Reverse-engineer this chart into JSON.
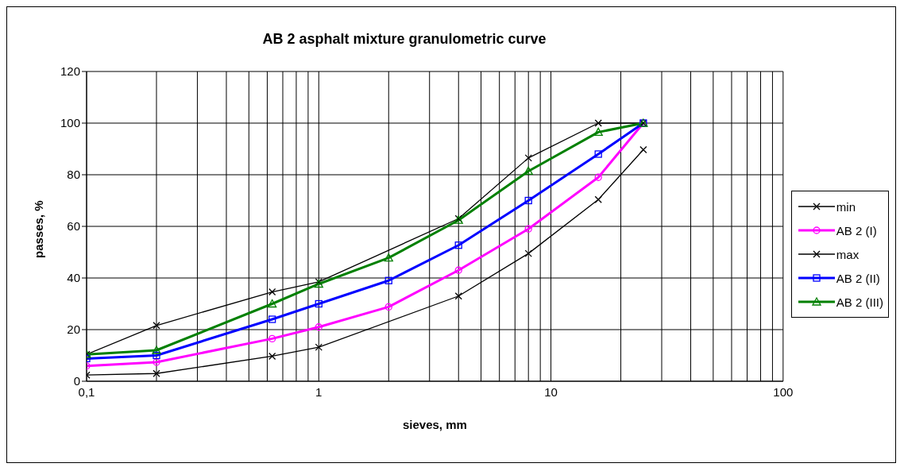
{
  "chart_data": {
    "type": "line",
    "title": "AB 2 asphalt mixture granulometric curve",
    "xlabel": "sieves, mm",
    "ylabel": "passes, %",
    "log": "x",
    "grid": true,
    "legend": "right",
    "line_style": "solid",
    "xlim": [
      0.1,
      100
    ],
    "ylim": [
      0,
      120
    ],
    "yticks": [
      0,
      20,
      40,
      60,
      80,
      100,
      120
    ],
    "xticks": [
      {
        "value": 0.1,
        "label": "0,1"
      },
      {
        "value": 0.2,
        "label": null
      },
      {
        "value": 0.3,
        "label": null
      },
      {
        "value": 0.4,
        "label": null
      },
      {
        "value": 0.5,
        "label": null
      },
      {
        "value": 0.6,
        "label": null
      },
      {
        "value": 0.7,
        "label": null
      },
      {
        "value": 0.8,
        "label": null
      },
      {
        "value": 0.9,
        "label": null
      },
      1,
      {
        "value": 2,
        "label": null
      },
      {
        "value": 3,
        "label": null
      },
      {
        "value": 4,
        "label": null
      },
      {
        "value": 5,
        "label": null
      },
      {
        "value": 6,
        "label": null
      },
      {
        "value": 7,
        "label": null
      },
      {
        "value": 8,
        "label": null
      },
      {
        "value": 9,
        "label": null
      },
      10,
      {
        "value": 20,
        "label": null
      },
      {
        "value": 30,
        "label": null
      },
      {
        "value": 40,
        "label": null
      },
      {
        "value": 50,
        "label": null
      },
      {
        "value": 60,
        "label": null
      },
      {
        "value": 70,
        "label": null
      },
      {
        "value": 80,
        "label": null
      },
      {
        "value": 90,
        "label": null
      },
      100
    ],
    "series": [
      {
        "name": "min",
        "color": "#000000",
        "marker": "cross",
        "x": [
          0.1,
          0.2,
          0.63,
          1,
          4,
          8,
          16,
          25
        ],
        "values": [
          2.4,
          3,
          9.7,
          13.2,
          33,
          49.5,
          70.4,
          89.7
        ]
      },
      {
        "name": "AB 2 (I)",
        "color": "#ff00ff",
        "marker": "circle",
        "x": [
          0.1,
          0.2,
          0.63,
          1,
          2,
          4,
          8,
          16,
          25
        ],
        "values": [
          5.9,
          7.4,
          16.5,
          21,
          28.8,
          43,
          59,
          79,
          100
        ]
      },
      {
        "name": "max",
        "color": "#000000",
        "marker": "cross",
        "x": [
          0.1,
          0.2,
          0.63,
          1,
          4,
          8,
          16,
          25
        ],
        "values": [
          10.4,
          21.6,
          34.6,
          38.5,
          63,
          86.5,
          100,
          100
        ]
      },
      {
        "name": "AB 2 (II)",
        "color": "#0000ff",
        "marker": "square",
        "x": [
          0.1,
          0.2,
          0.63,
          1,
          2,
          4,
          8,
          16,
          25
        ],
        "values": [
          8.8,
          10,
          24,
          30,
          39,
          52.7,
          70,
          88,
          100
        ]
      },
      {
        "name": "AB 2 (III)",
        "color": "#008000",
        "marker": "triangle",
        "x": [
          0.1,
          0.2,
          0.63,
          1,
          2,
          4,
          8,
          16,
          25
        ],
        "values": [
          10.4,
          12,
          30,
          37.7,
          47.8,
          62.4,
          81.4,
          96.5,
          100
        ]
      }
    ]
  }
}
